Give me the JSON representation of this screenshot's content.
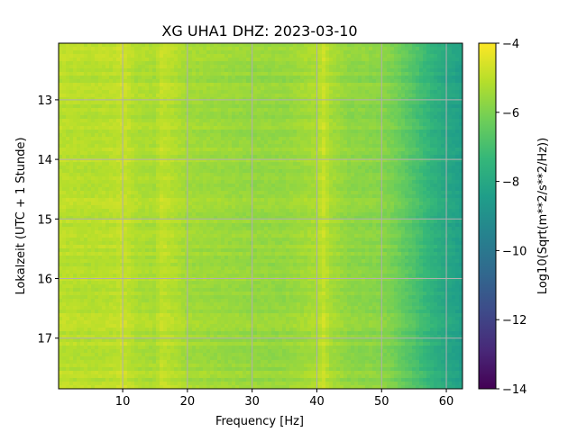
{
  "chart_data": {
    "type": "heatmap",
    "title": "XG UHA1  DHZ: 2023-03-10",
    "xlabel": "Frequency [Hz]",
    "ylabel": "Lokalzeit (UTC + 1 Stunde)",
    "colorbar_label": "Log10(Sqrt(m**2/s**2/Hz))",
    "colormap": "viridis",
    "xlim": [
      0.1,
      62.5
    ],
    "ylim": [
      12.05,
      17.85
    ],
    "y_inverted": true,
    "x_ticks": [
      10,
      20,
      30,
      40,
      50,
      60
    ],
    "x_tick_labels": [
      "10",
      "20",
      "30",
      "40",
      "50",
      "60"
    ],
    "y_ticks": [
      13,
      14,
      15,
      16,
      17
    ],
    "y_tick_labels": [
      "13",
      "14",
      "15",
      "16",
      "17"
    ],
    "clim": [
      -14,
      -4
    ],
    "colorbar_ticks": [
      -4,
      -6,
      -8,
      -10,
      -12,
      -14
    ],
    "colorbar_tick_labels": [
      "−4",
      "−6",
      "−8",
      "−10",
      "−12",
      "−14"
    ],
    "grid": true,
    "profile": {
      "frequency_hz": [
        0.1,
        5,
        9,
        10,
        12,
        15,
        16,
        20,
        25,
        30,
        35,
        40,
        41,
        42,
        45,
        50,
        52,
        55,
        58,
        60,
        62.5
      ],
      "log10_amplitude": [
        -5.0,
        -5.1,
        -5.0,
        -4.8,
        -5.2,
        -5.3,
        -4.9,
        -5.4,
        -5.5,
        -5.6,
        -5.6,
        -5.3,
        -4.8,
        -5.3,
        -5.7,
        -5.8,
        -6.1,
        -6.8,
        -7.6,
        -8.0,
        -8.4
      ]
    },
    "temporal_variation": "weak; rows vary by roughly ±0.2 in log10 amplitude across time"
  }
}
